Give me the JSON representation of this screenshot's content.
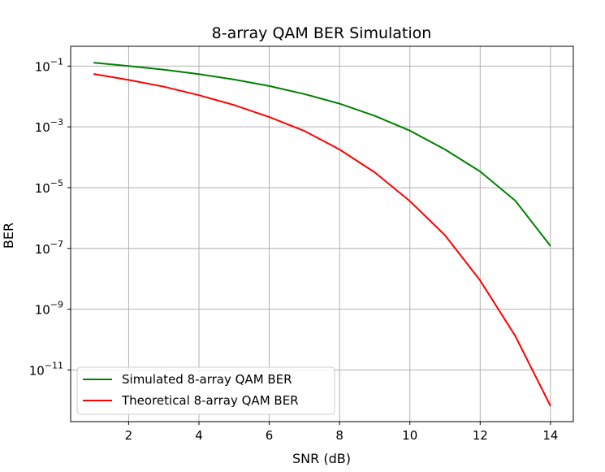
{
  "chart_data": {
    "type": "line",
    "title": "8-array QAM BER Simulation",
    "xlabel": "SNR (dB)",
    "ylabel": "BER",
    "xscale": "linear",
    "yscale": "log",
    "xlim": [
      0.35,
      14.65
    ],
    "ylim_exponent": [
      -12.7,
      -0.35
    ],
    "grid": true,
    "legend_position": "lower-left",
    "x_ticks": [
      2,
      4,
      6,
      8,
      10,
      12,
      14
    ],
    "x_tick_labels": [
      "2",
      "4",
      "6",
      "8",
      "10",
      "12",
      "14"
    ],
    "y_ticks": [
      1e-11,
      1e-09,
      1e-07,
      1e-05,
      0.001,
      0.1
    ],
    "y_tick_labels": [
      {
        "base": "10",
        "exp": "−11"
      },
      {
        "base": "10",
        "exp": "−9"
      },
      {
        "base": "10",
        "exp": "−7"
      },
      {
        "base": "10",
        "exp": "−5"
      },
      {
        "base": "10",
        "exp": "−3"
      },
      {
        "base": "10",
        "exp": "−1"
      }
    ],
    "x": [
      1,
      2,
      3,
      4,
      5,
      6,
      7,
      8,
      9,
      10,
      11,
      12,
      13,
      14
    ],
    "series": [
      {
        "name": "Simulated 8-array QAM BER",
        "color": "#008000",
        "values": [
          0.13,
          0.1,
          0.076,
          0.054,
          0.036,
          0.022,
          0.012,
          0.0058,
          0.0023,
          0.00075,
          0.00018,
          3.4e-05,
          3.7e-06,
          1.2e-07
        ]
      },
      {
        "name": "Theoretical 8-array QAM BER",
        "color": "#ff0000",
        "values": [
          0.055,
          0.035,
          0.021,
          0.011,
          0.0052,
          0.0021,
          0.00073,
          0.00018,
          3.2e-05,
          3.6e-06,
          2.7e-07,
          8.8e-09,
          1.3e-10,
          6.5e-13
        ]
      }
    ]
  }
}
